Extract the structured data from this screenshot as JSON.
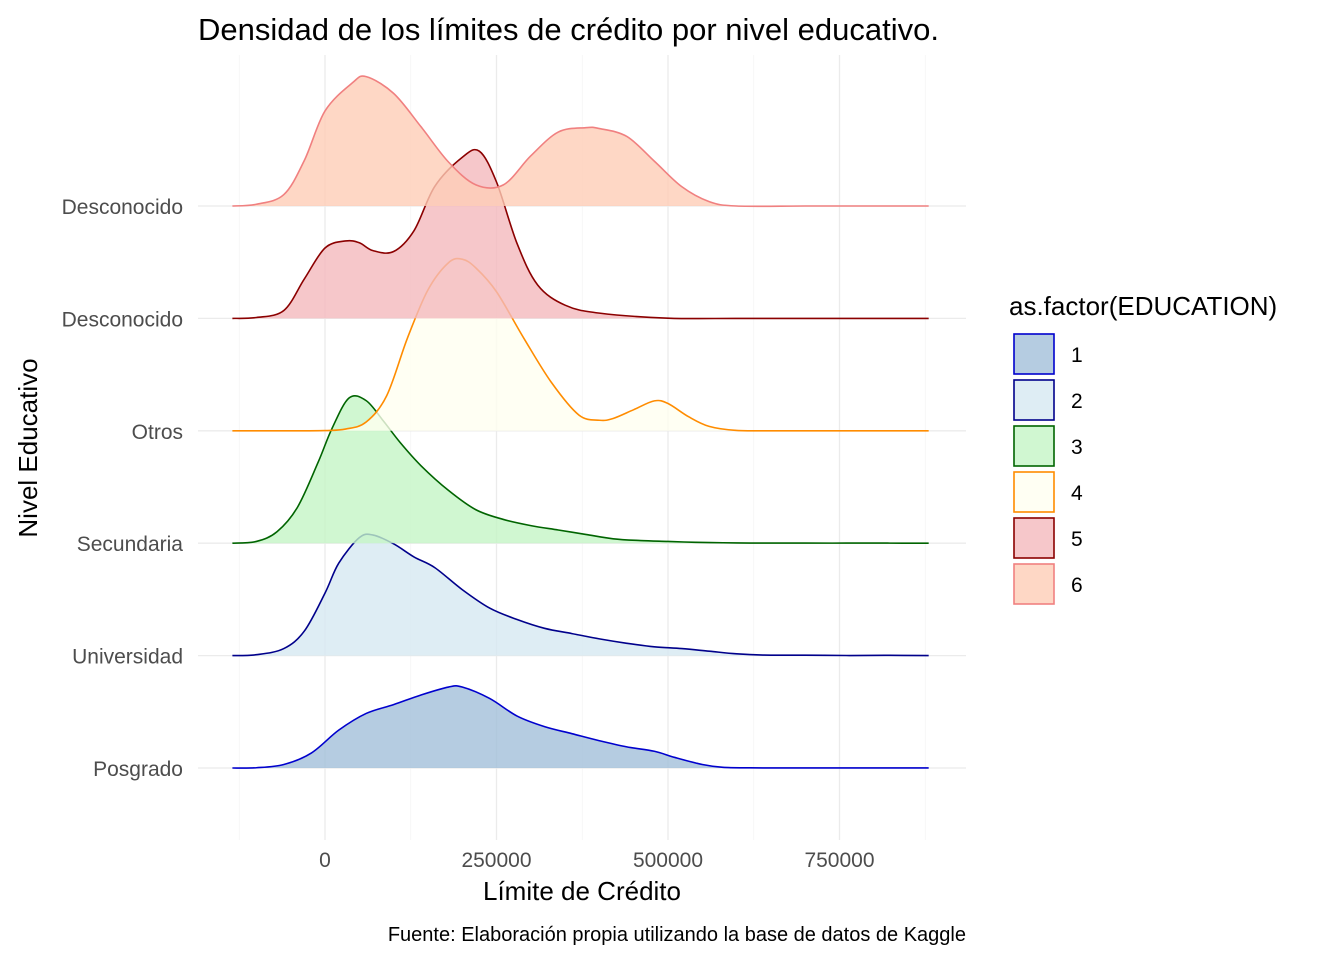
{
  "chart_data": {
    "type": "ridgeline",
    "title": "Densidad de los límites de crédito por nivel educativo.",
    "xlabel": "Límite de Crédito",
    "ylabel": "Nivel Educativo",
    "caption": "Fuente: Elaboración propia utilizando la base de datos de Kaggle",
    "xlim": [
      -160000,
      900000
    ],
    "x_ticks": [
      0,
      250000,
      500000,
      750000
    ],
    "x_tick_labels": [
      "0",
      "250000",
      "500000",
      "750000"
    ],
    "y_categories": [
      "Posgrado",
      "Universidad",
      "Secundaria",
      "Otros",
      "Desconocido",
      "Desconocido"
    ],
    "grid": true,
    "legend": {
      "title": "as.factor(EDUCATION)",
      "position": "right",
      "entries": [
        {
          "label": "1",
          "fill": "#a2bfd9",
          "stroke": "#0000cd"
        },
        {
          "label": "2",
          "fill": "#d6e9f1",
          "stroke": "#00008b"
        },
        {
          "label": "3",
          "fill": "#c4f5c6",
          "stroke": "#006400"
        },
        {
          "label": "4",
          "fill": "#fffff0",
          "stroke": "#ff8c00"
        },
        {
          "label": "5",
          "fill": "#f4b9bd",
          "stroke": "#8b0000"
        },
        {
          "label": "6",
          "fill": "#fecdb7",
          "stroke": "#f08080"
        }
      ]
    },
    "series": [
      {
        "name": "1",
        "row": 0,
        "x": [
          -135000,
          -100000,
          -60000,
          -20000,
          20000,
          60000,
          100000,
          140000,
          180000,
          200000,
          240000,
          280000,
          320000,
          360000,
          400000,
          440000,
          480000,
          510000,
          550000,
          580000,
          620000,
          660000,
          700000,
          760000,
          800000,
          880000
        ],
        "y": [
          0,
          0.003,
          0.04,
          0.17,
          0.43,
          0.62,
          0.72,
          0.83,
          0.92,
          0.92,
          0.79,
          0.59,
          0.47,
          0.39,
          0.31,
          0.24,
          0.19,
          0.12,
          0.04,
          0.008,
          0.002,
          0.001,
          0.001,
          0.001,
          0.001,
          0.001
        ]
      },
      {
        "name": "2",
        "row": 1,
        "x": [
          -135000,
          -100000,
          -60000,
          -30000,
          0,
          20000,
          50000,
          70000,
          100000,
          130000,
          160000,
          200000,
          240000,
          280000,
          320000,
          360000,
          400000,
          440000,
          480000,
          520000,
          560000,
          600000,
          640000,
          700000,
          760000,
          820000,
          880000
        ],
        "y": [
          0,
          0.01,
          0.08,
          0.28,
          0.71,
          1.05,
          1.34,
          1.37,
          1.27,
          1.12,
          1.0,
          0.75,
          0.54,
          0.41,
          0.31,
          0.25,
          0.19,
          0.14,
          0.1,
          0.08,
          0.05,
          0.02,
          0.006,
          0.005,
          0.001,
          0.003,
          0
        ]
      },
      {
        "name": "3",
        "row": 2,
        "x": [
          -135000,
          -100000,
          -70000,
          -40000,
          -10000,
          10000,
          35000,
          60000,
          85000,
          110000,
          140000,
          180000,
          220000,
          260000,
          300000,
          340000,
          380000,
          420000,
          460000,
          500000,
          540000,
          580000,
          620000,
          660000,
          700000,
          760000,
          820000,
          880000
        ],
        "y": [
          0,
          0.02,
          0.13,
          0.41,
          0.92,
          1.3,
          1.65,
          1.62,
          1.39,
          1.14,
          0.88,
          0.6,
          0.38,
          0.27,
          0.2,
          0.15,
          0.1,
          0.05,
          0.03,
          0.02,
          0.01,
          0.005,
          0.002,
          0.002,
          0.001,
          0.001,
          0.001,
          0
        ]
      },
      {
        "name": "4",
        "row": 3,
        "x": [
          -135000,
          -60000,
          0,
          30000,
          60000,
          90000,
          120000,
          150000,
          180000,
          200000,
          220000,
          250000,
          290000,
          330000,
          370000,
          400000,
          420000,
          450000,
          480000,
          500000,
          530000,
          560000,
          600000,
          660000,
          720000,
          800000,
          880000
        ],
        "y": [
          0,
          0,
          0.003,
          0.02,
          0.1,
          0.4,
          1.05,
          1.6,
          1.91,
          1.95,
          1.85,
          1.58,
          1.05,
          0.55,
          0.18,
          0.12,
          0.14,
          0.24,
          0.34,
          0.31,
          0.16,
          0.05,
          0.004,
          0,
          0,
          0,
          0
        ]
      },
      {
        "name": "5",
        "row": 4,
        "x": [
          -135000,
          -100000,
          -60000,
          -30000,
          0,
          30000,
          50000,
          70000,
          100000,
          130000,
          160000,
          200000,
          225000,
          250000,
          280000,
          310000,
          350000,
          400000,
          500000,
          600000,
          700000,
          800000,
          880000
        ],
        "y": [
          0,
          0.01,
          0.09,
          0.45,
          0.8,
          0.88,
          0.86,
          0.77,
          0.76,
          1.0,
          1.5,
          1.83,
          1.9,
          1.55,
          0.85,
          0.38,
          0.15,
          0.06,
          0.003,
          0,
          0,
          0,
          0
        ]
      },
      {
        "name": "6",
        "row": 5,
        "x": [
          -135000,
          -100000,
          -60000,
          -30000,
          0,
          40000,
          60000,
          100000,
          140000,
          180000,
          220000,
          260000,
          300000,
          340000,
          380000,
          400000,
          440000,
          480000,
          520000,
          560000,
          600000,
          700000,
          800000,
          880000
        ],
        "y": [
          0,
          0.02,
          0.13,
          0.52,
          1.08,
          1.4,
          1.47,
          1.28,
          0.9,
          0.5,
          0.24,
          0.24,
          0.57,
          0.84,
          0.89,
          0.88,
          0.79,
          0.51,
          0.22,
          0.05,
          0,
          0,
          0,
          0
        ]
      }
    ]
  }
}
